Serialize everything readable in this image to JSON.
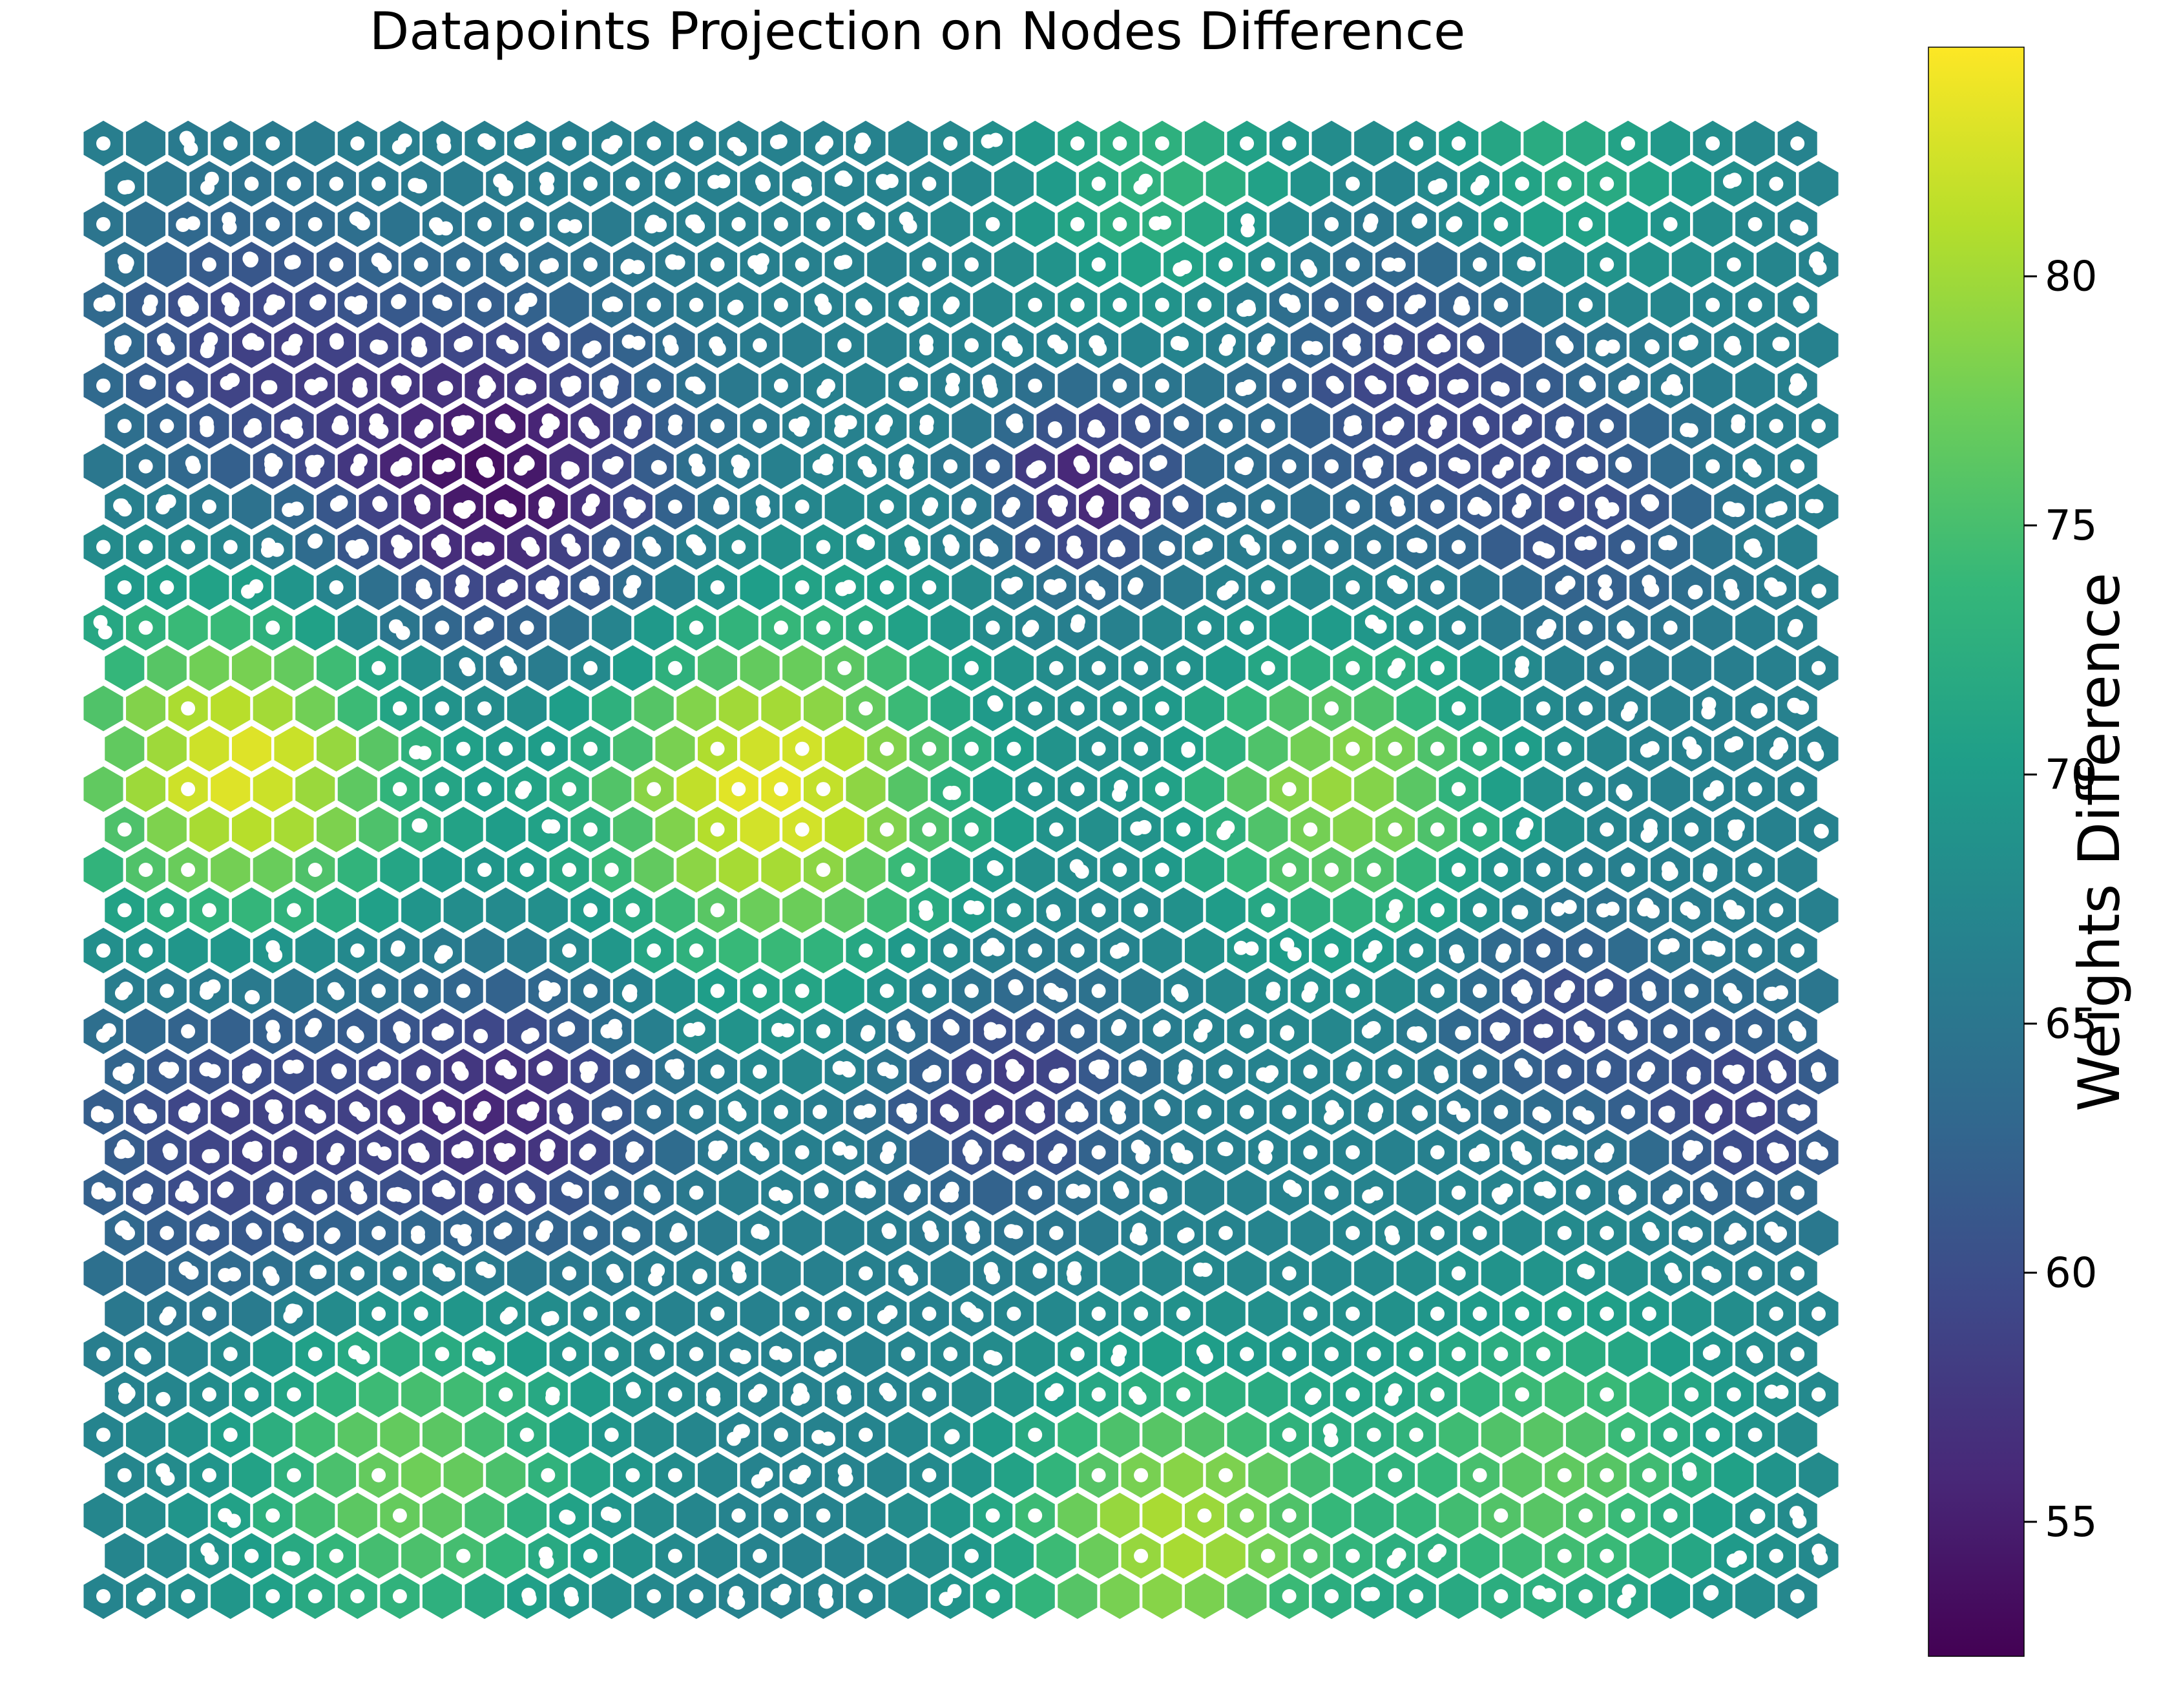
{
  "chart_data": {
    "type": "heatmap",
    "subtype": "hexagonal self-organizing map (U-matrix) with projected datapoints",
    "title": "Datapoints Projection on Nodes Difference",
    "grid": {
      "columns": 41,
      "rows": 37,
      "hex_orientation": "pointy-top",
      "odd_rows_offset": "right"
    },
    "cell_edge_color": "#ffffff",
    "datapoint_color": "#ffffff",
    "colorbar": {
      "label": "Weights Difference",
      "colormap": "viridis",
      "vmin": 52.3,
      "vmax": 84.6,
      "ticks": [
        55,
        60,
        65,
        70,
        75,
        80
      ],
      "colormap_stops": [
        "#440154",
        "#482878",
        "#3e4989",
        "#31688e",
        "#26828e",
        "#1f9e89",
        "#35b779",
        "#6ece58",
        "#b5de2b",
        "#fde725"
      ]
    },
    "value_field": {
      "base": 66.5,
      "components": [
        {
          "region": "upper-left dark cluster",
          "row": 8.5,
          "col": 9,
          "amp": -13,
          "spread": 3
        },
        {
          "region": "top-left dark",
          "row": 5,
          "col": 3,
          "amp": -7,
          "spread": 2.5
        },
        {
          "region": "top-center-right dark",
          "row": 8.5,
          "col": 23,
          "amp": -11,
          "spread": 1.6
        },
        {
          "region": "top-right dark",
          "row": 5.5,
          "col": 31,
          "amp": -8,
          "spread": 3
        },
        {
          "region": "right dark",
          "row": 9.5,
          "col": 35,
          "amp": -5,
          "spread": 2
        },
        {
          "region": "left bright",
          "row": 15.5,
          "col": 3,
          "amp": 17,
          "spread": 3
        },
        {
          "region": "center bright",
          "row": 16,
          "col": 15.5,
          "amp": 17,
          "spread": 3.2
        },
        {
          "region": "right bright",
          "row": 16,
          "col": 29,
          "amp": 13,
          "spread": 2.6
        },
        {
          "region": "top-right bright",
          "row": 1,
          "col": 34,
          "amp": 7,
          "spread": 2.5
        },
        {
          "region": "top-center bright",
          "row": 1,
          "col": 25,
          "amp": 7,
          "spread": 2.5
        },
        {
          "region": "left-center dark",
          "row": 24.5,
          "col": 3,
          "amp": -8,
          "spread": 3
        },
        {
          "region": "center dark",
          "row": 24,
          "col": 9.5,
          "amp": -10,
          "spread": 2.4
        },
        {
          "region": "center-right dark",
          "row": 23.5,
          "col": 21,
          "amp": -9,
          "spread": 2
        },
        {
          "region": "right dark 2",
          "row": 21.5,
          "col": 34,
          "amp": -7,
          "spread": 1.8
        },
        {
          "region": "bottom-right-edge dark",
          "row": 24,
          "col": 38.5,
          "amp": -8,
          "spread": 1.8
        },
        {
          "region": "bottom-left bright",
          "row": 33,
          "col": 7,
          "amp": 11,
          "spread": 3
        },
        {
          "region": "bottom-center bright",
          "row": 34.5,
          "col": 25,
          "amp": 14,
          "spread": 2.8
        },
        {
          "region": "bottom-right bright",
          "row": 33,
          "col": 34,
          "amp": 10,
          "spread": 3
        }
      ]
    },
    "datapoints": "one or more projected datapoints (white dots) on most nodes; larger clusters on the darkest nodes"
  }
}
